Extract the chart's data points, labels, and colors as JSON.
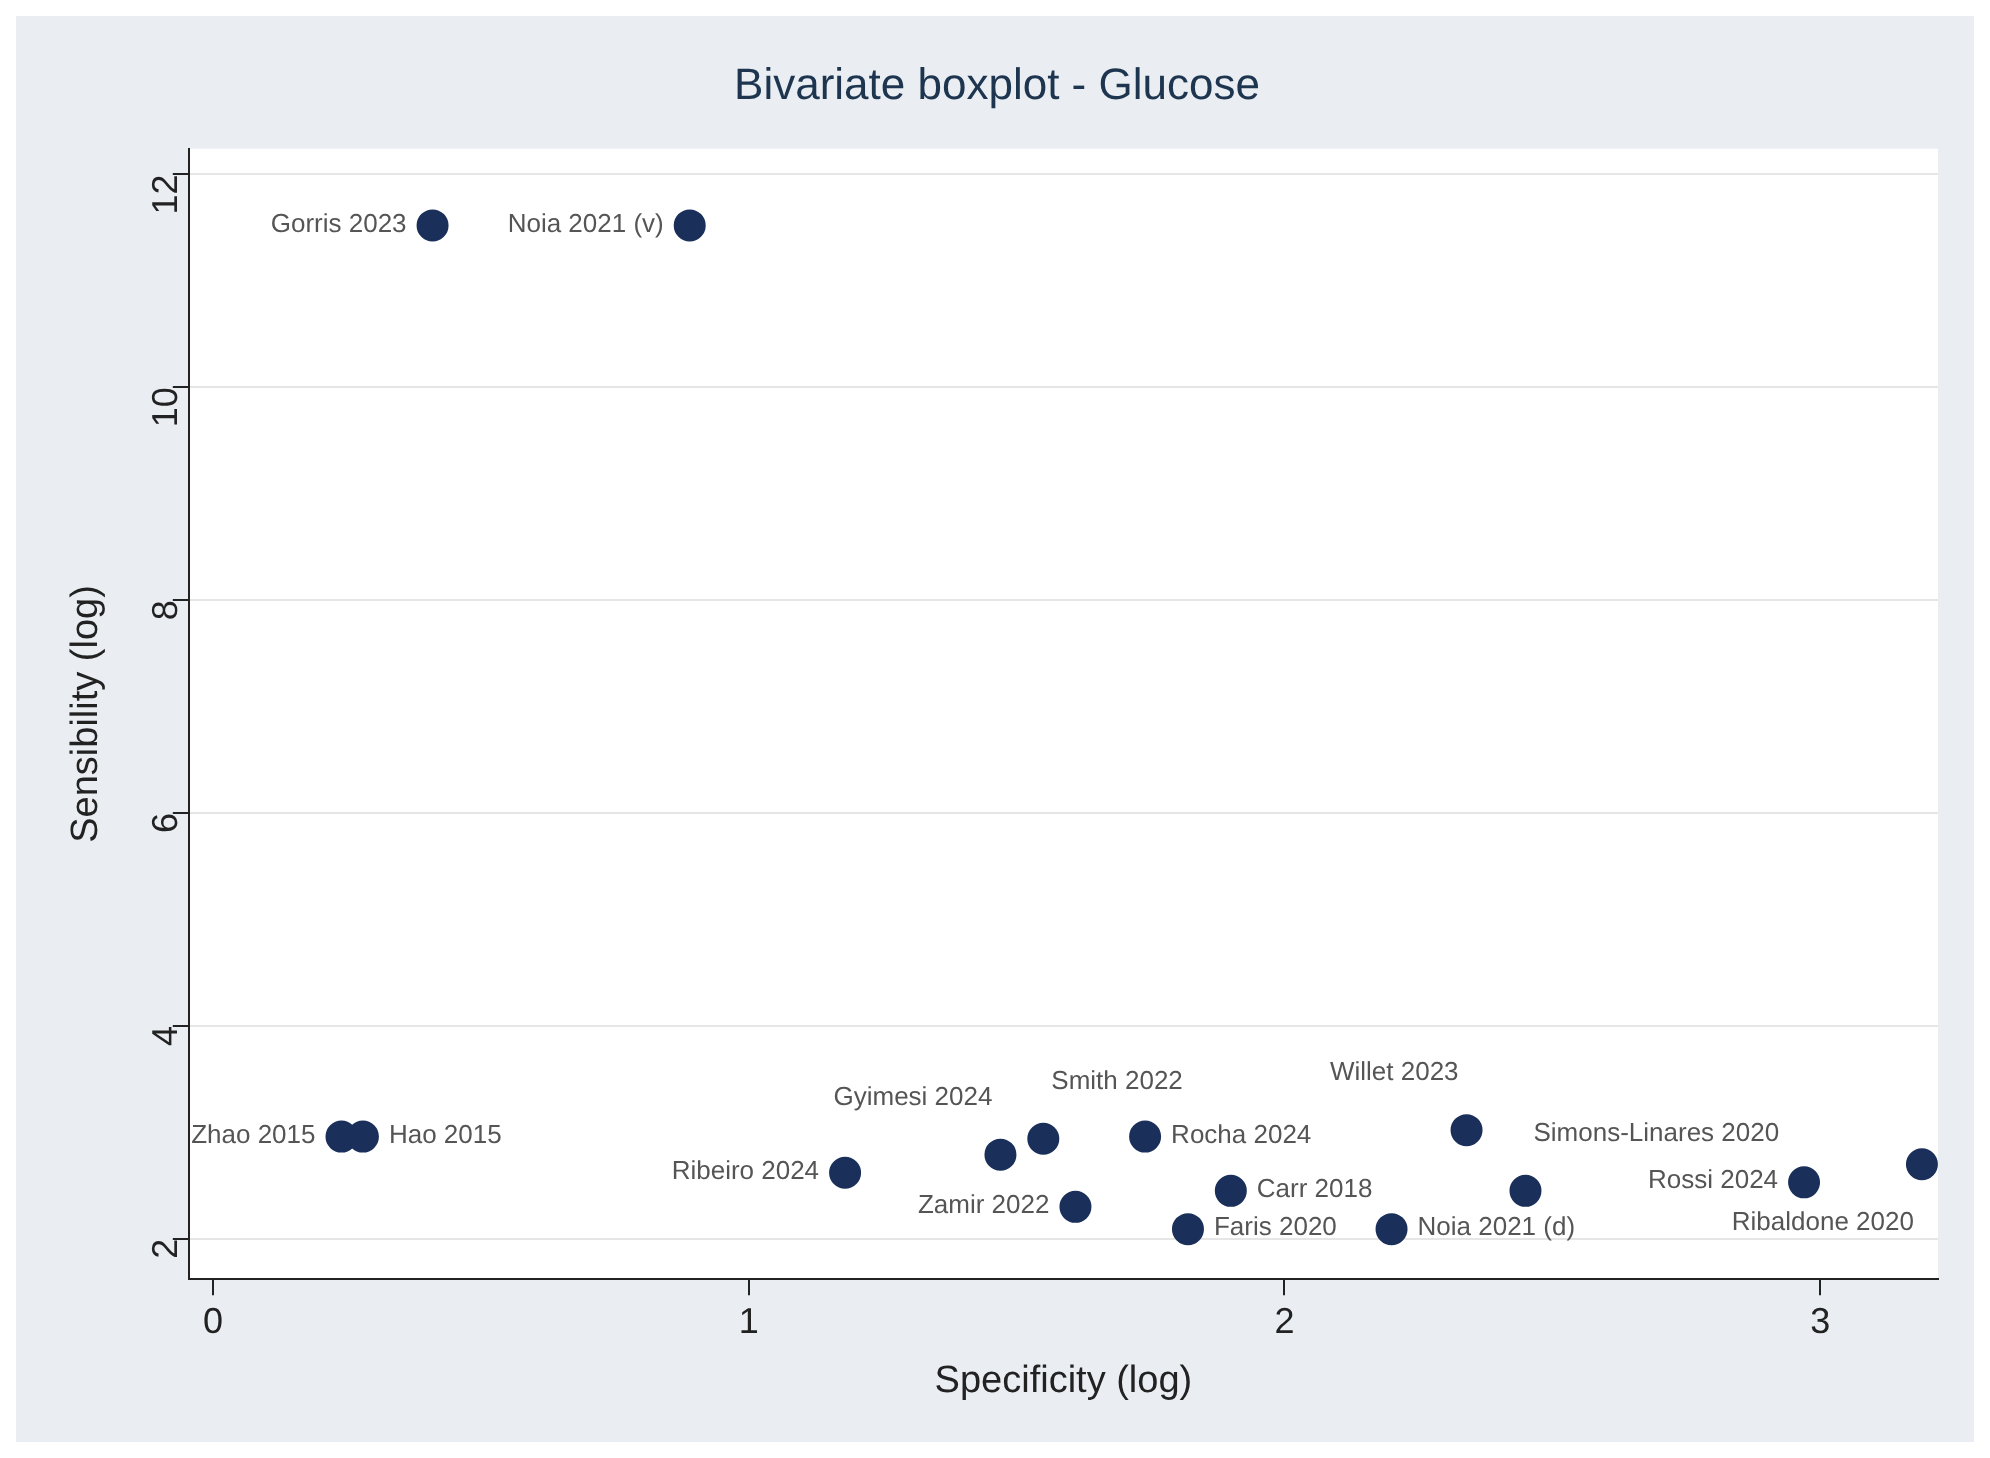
{
  "chart_data": {
    "type": "scatter",
    "title": "Bivariate boxplot - Glucose",
    "xlabel": "Specificity (log)",
    "ylabel": "Sensibility (log)",
    "x": [
      0.41,
      0.89,
      0.24,
      0.28,
      1.18,
      1.47,
      1.55,
      1.74,
      1.61,
      1.82,
      1.9,
      2.2,
      2.45,
      2.34,
      2.97,
      3.19
    ],
    "values": [
      11.52,
      11.52,
      2.96,
      2.96,
      2.62,
      2.79,
      2.94,
      2.96,
      2.3,
      2.09,
      2.45,
      2.09,
      2.45,
      3.02,
      2.53,
      2.7
    ],
    "value_labels": [
      "Gorris 2023",
      "Noia 2021 (v)",
      "Zhao 2015",
      "Hao 2015",
      "Ribeiro 2024",
      "Gyimesi 2024",
      "Smith 2022",
      "Rocha 2024",
      "Zamir 2022",
      "Faris 2020",
      "Carr 2018",
      "Noia 2021 (d)",
      "Simons-Linares 2020",
      "Willet 2023",
      "Rossi 2024",
      "Ribaldone 2020"
    ],
    "color": "#1a2f5a",
    "marker": "circle",
    "xlim": [
      -0.045,
      3.22
    ],
    "ylim": [
      1.62,
      12.24
    ],
    "xticks": [
      0,
      1,
      2,
      3
    ],
    "yticks": [
      2,
      4,
      6,
      8,
      10,
      12
    ],
    "grid": "y"
  }
}
